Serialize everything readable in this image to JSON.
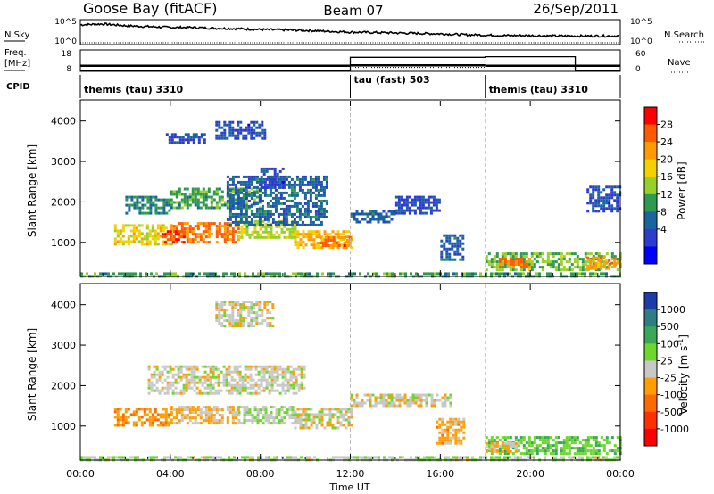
{
  "header": {
    "radar": "Goose Bay (fitACF)",
    "beam": "Beam 07",
    "date": "26/Sep/2011"
  },
  "noise_panel": {
    "left_label": "N.Sky",
    "right_label": "N.Search",
    "left_ticks": [
      "10^5",
      "10^0"
    ],
    "right_ticks": [
      "10^5",
      "10^0"
    ]
  },
  "freq_panel": {
    "left_label_1": "Freq.",
    "left_label_2": "[MHz]",
    "right_label": "Nave",
    "left_ticks": [
      "18",
      "8"
    ],
    "right_ticks": [
      "60",
      "0"
    ]
  },
  "cpid": {
    "label": "CPID",
    "segments": [
      {
        "text": "themis (tau) 3310",
        "start_h": 0
      },
      {
        "text": "tau (fast) 503",
        "start_h": 12
      },
      {
        "text": "themis (tau) 3310",
        "start_h": 18
      }
    ]
  },
  "power_panel": {
    "ylabel": "Slant Range [km]",
    "colorbar_label": "Power [dB]",
    "colorbar_ticks": [
      "28",
      "24",
      "20",
      "16",
      "12",
      "8",
      "4"
    ],
    "colorbar_colors": [
      "#ff0000",
      "#ff5a00",
      "#ff9a00",
      "#f3d000",
      "#99d028",
      "#2e9a50",
      "#1a64a0",
      "#2c3ccc",
      "#0000ff"
    ]
  },
  "velocity_panel": {
    "ylabel": "Slant Range [km]",
    "colorbar_label": "Velocity [m s",
    "colorbar_label_exp": "-1",
    "colorbar_ticks": [
      "1000",
      "500",
      "100",
      "25",
      "-25",
      "-100",
      "-500",
      "-1000"
    ],
    "colorbar_colors": [
      "#1c3ca8",
      "#2e7d84",
      "#3aa858",
      "#6cd82c",
      "#c8c8c8",
      "#ff9e00",
      "#ff6a00",
      "#ff3000",
      "#ff0000"
    ]
  },
  "chart_data": [
    {
      "type": "line",
      "name": "noise",
      "x_hours": [
        0,
        1,
        2,
        3,
        4,
        5,
        6,
        7,
        8,
        9,
        10,
        11,
        12,
        13,
        14,
        15,
        16,
        17,
        18,
        19,
        20,
        21,
        22,
        23,
        24
      ],
      "sky_log10": [
        4.2,
        4.4,
        4.0,
        3.8,
        3.6,
        3.6,
        3.4,
        3.3,
        3.1,
        3.0,
        2.9,
        2.7,
        2.5,
        2.4,
        2.3,
        2.2,
        2.1,
        1.9,
        1.8,
        1.7,
        1.7,
        1.6,
        1.6,
        1.6,
        1.6
      ],
      "search_log10": [
        0.0,
        0.0,
        0.0,
        0.0,
        0.0,
        0.0,
        0.0,
        0.0,
        0.0,
        0.0,
        0.0,
        0.0,
        0.0,
        0.0,
        0.0,
        0.0,
        0.0,
        0.0,
        0.0,
        0.0,
        0.0,
        0.0,
        0.0,
        0.0,
        0.0
      ],
      "ylim": [
        0,
        5
      ]
    },
    {
      "type": "line",
      "name": "frequency-nave",
      "freq_segments": [
        {
          "x": [
            0,
            12
          ],
          "y": 10.4
        },
        {
          "x": [
            12,
            18
          ],
          "y": 10.6
        },
        {
          "x": [
            18,
            24
          ],
          "y": 10.4
        }
      ],
      "nave_segments": [
        {
          "x": [
            0,
            12
          ],
          "y": 0
        },
        {
          "x": [
            12,
            18
          ],
          "y": 40
        },
        {
          "x": [
            18,
            22
          ],
          "y": 42
        },
        {
          "x": [
            22,
            24
          ],
          "y": 0
        }
      ],
      "freq_ylim": [
        8,
        18
      ],
      "nave_ylim": [
        0,
        60
      ]
    },
    {
      "type": "heatmap",
      "name": "power",
      "xlabel": "",
      "ylabel": "Slant Range [km]",
      "xlim": [
        0,
        24
      ],
      "ylim": [
        180,
        4500
      ],
      "y_ticks": [
        1000,
        2000,
        3000,
        4000
      ],
      "x_ticks": [
        0,
        4,
        8,
        12,
        16,
        20,
        24
      ],
      "clim": [
        0,
        30
      ],
      "regions": [
        {
          "x": [
            1.5,
            4.0
          ],
          "y": [
            950,
            1450
          ],
          "v": 18
        },
        {
          "x": [
            4.0,
            7.0
          ],
          "y": [
            1000,
            1500
          ],
          "v": 24
        },
        {
          "x": [
            3.6,
            4.6
          ],
          "y": [
            1000,
            1300
          ],
          "v": 28
        },
        {
          "x": [
            7.0,
            9.5
          ],
          "y": [
            1100,
            1550
          ],
          "v": 16
        },
        {
          "x": [
            9.5,
            12.0
          ],
          "y": [
            900,
            1300
          ],
          "v": 20
        },
        {
          "x": [
            10.5,
            12.0
          ],
          "y": [
            950,
            1150
          ],
          "v": 24
        },
        {
          "x": [
            2.0,
            4.0
          ],
          "y": [
            1750,
            2150
          ],
          "v": 10
        },
        {
          "x": [
            4.0,
            8.0
          ],
          "y": [
            1850,
            2350
          ],
          "v": 12
        },
        {
          "x": [
            6.5,
            11.0
          ],
          "y": [
            1450,
            2650
          ],
          "v": 8
        },
        {
          "x": [
            8.0,
            9.0
          ],
          "y": [
            2350,
            2850
          ],
          "v": 6
        },
        {
          "x": [
            3.8,
            5.5
          ],
          "y": [
            3450,
            3700
          ],
          "v": 6
        },
        {
          "x": [
            6.0,
            8.2
          ],
          "y": [
            3600,
            4000
          ],
          "v": 6
        },
        {
          "x": [
            12.0,
            14.0
          ],
          "y": [
            1500,
            1800
          ],
          "v": 8
        },
        {
          "x": [
            14.0,
            16.0
          ],
          "y": [
            1700,
            2150
          ],
          "v": 6
        },
        {
          "x": [
            16.0,
            17.0
          ],
          "y": [
            600,
            1200
          ],
          "v": 8
        },
        {
          "x": [
            18.0,
            24.0
          ],
          "y": [
            300,
            750
          ],
          "v": 14
        },
        {
          "x": [
            18.6,
            20.0
          ],
          "y": [
            370,
            620
          ],
          "v": 24
        },
        {
          "x": [
            22.5,
            24.0
          ],
          "y": [
            350,
            650
          ],
          "v": 22
        },
        {
          "x": [
            22.5,
            24.0
          ],
          "y": [
            1800,
            2400
          ],
          "v": 6
        },
        {
          "x": [
            0,
            24
          ],
          "y": [
            180,
            260
          ],
          "v": 12
        }
      ]
    },
    {
      "type": "heatmap",
      "name": "velocity",
      "xlabel": "Time UT",
      "ylabel": "Slant Range [km]",
      "xlim": [
        0,
        24
      ],
      "ylim": [
        180,
        4500
      ],
      "y_ticks": [
        1000,
        2000,
        3000,
        4000
      ],
      "x_ticks": [
        0,
        4,
        8,
        12,
        16,
        20,
        24
      ],
      "x_tick_labels": [
        "00:00",
        "04:00",
        "08:00",
        "12:00",
        "16:00",
        "20:00",
        "00:00"
      ],
      "clim": [
        -1000,
        1000
      ],
      "regions": [
        {
          "x": [
            1.5,
            4.0
          ],
          "y": [
            1000,
            1450
          ],
          "v": -300
        },
        {
          "x": [
            4.0,
            7.0
          ],
          "y": [
            1100,
            1500
          ],
          "v": -150
        },
        {
          "x": [
            7.0,
            9.5
          ],
          "y": [
            1100,
            1500
          ],
          "v": 80
        },
        {
          "x": [
            9.5,
            12.0
          ],
          "y": [
            950,
            1450
          ],
          "v": 0
        },
        {
          "x": [
            3.0,
            10.0
          ],
          "y": [
            1800,
            2500
          ],
          "v": 0
        },
        {
          "x": [
            6.0,
            8.5
          ],
          "y": [
            3450,
            4100
          ],
          "v": 0
        },
        {
          "x": [
            12.0,
            16.5
          ],
          "y": [
            1500,
            1800
          ],
          "v": 0
        },
        {
          "x": [
            15.8,
            17.0
          ],
          "y": [
            600,
            1200
          ],
          "v": -200
        },
        {
          "x": [
            18.0,
            24.0
          ],
          "y": [
            350,
            750
          ],
          "v": 300
        },
        {
          "x": [
            18.0,
            19.5
          ],
          "y": [
            400,
            600
          ],
          "v": -120
        },
        {
          "x": [
            0,
            24
          ],
          "y": [
            180,
            260
          ],
          "v": 60
        }
      ]
    }
  ],
  "time_axis": {
    "label": "Time UT",
    "tick_labels": [
      "00:00",
      "04:00",
      "08:00",
      "12:00",
      "16:00",
      "20:00",
      "00:00"
    ]
  }
}
